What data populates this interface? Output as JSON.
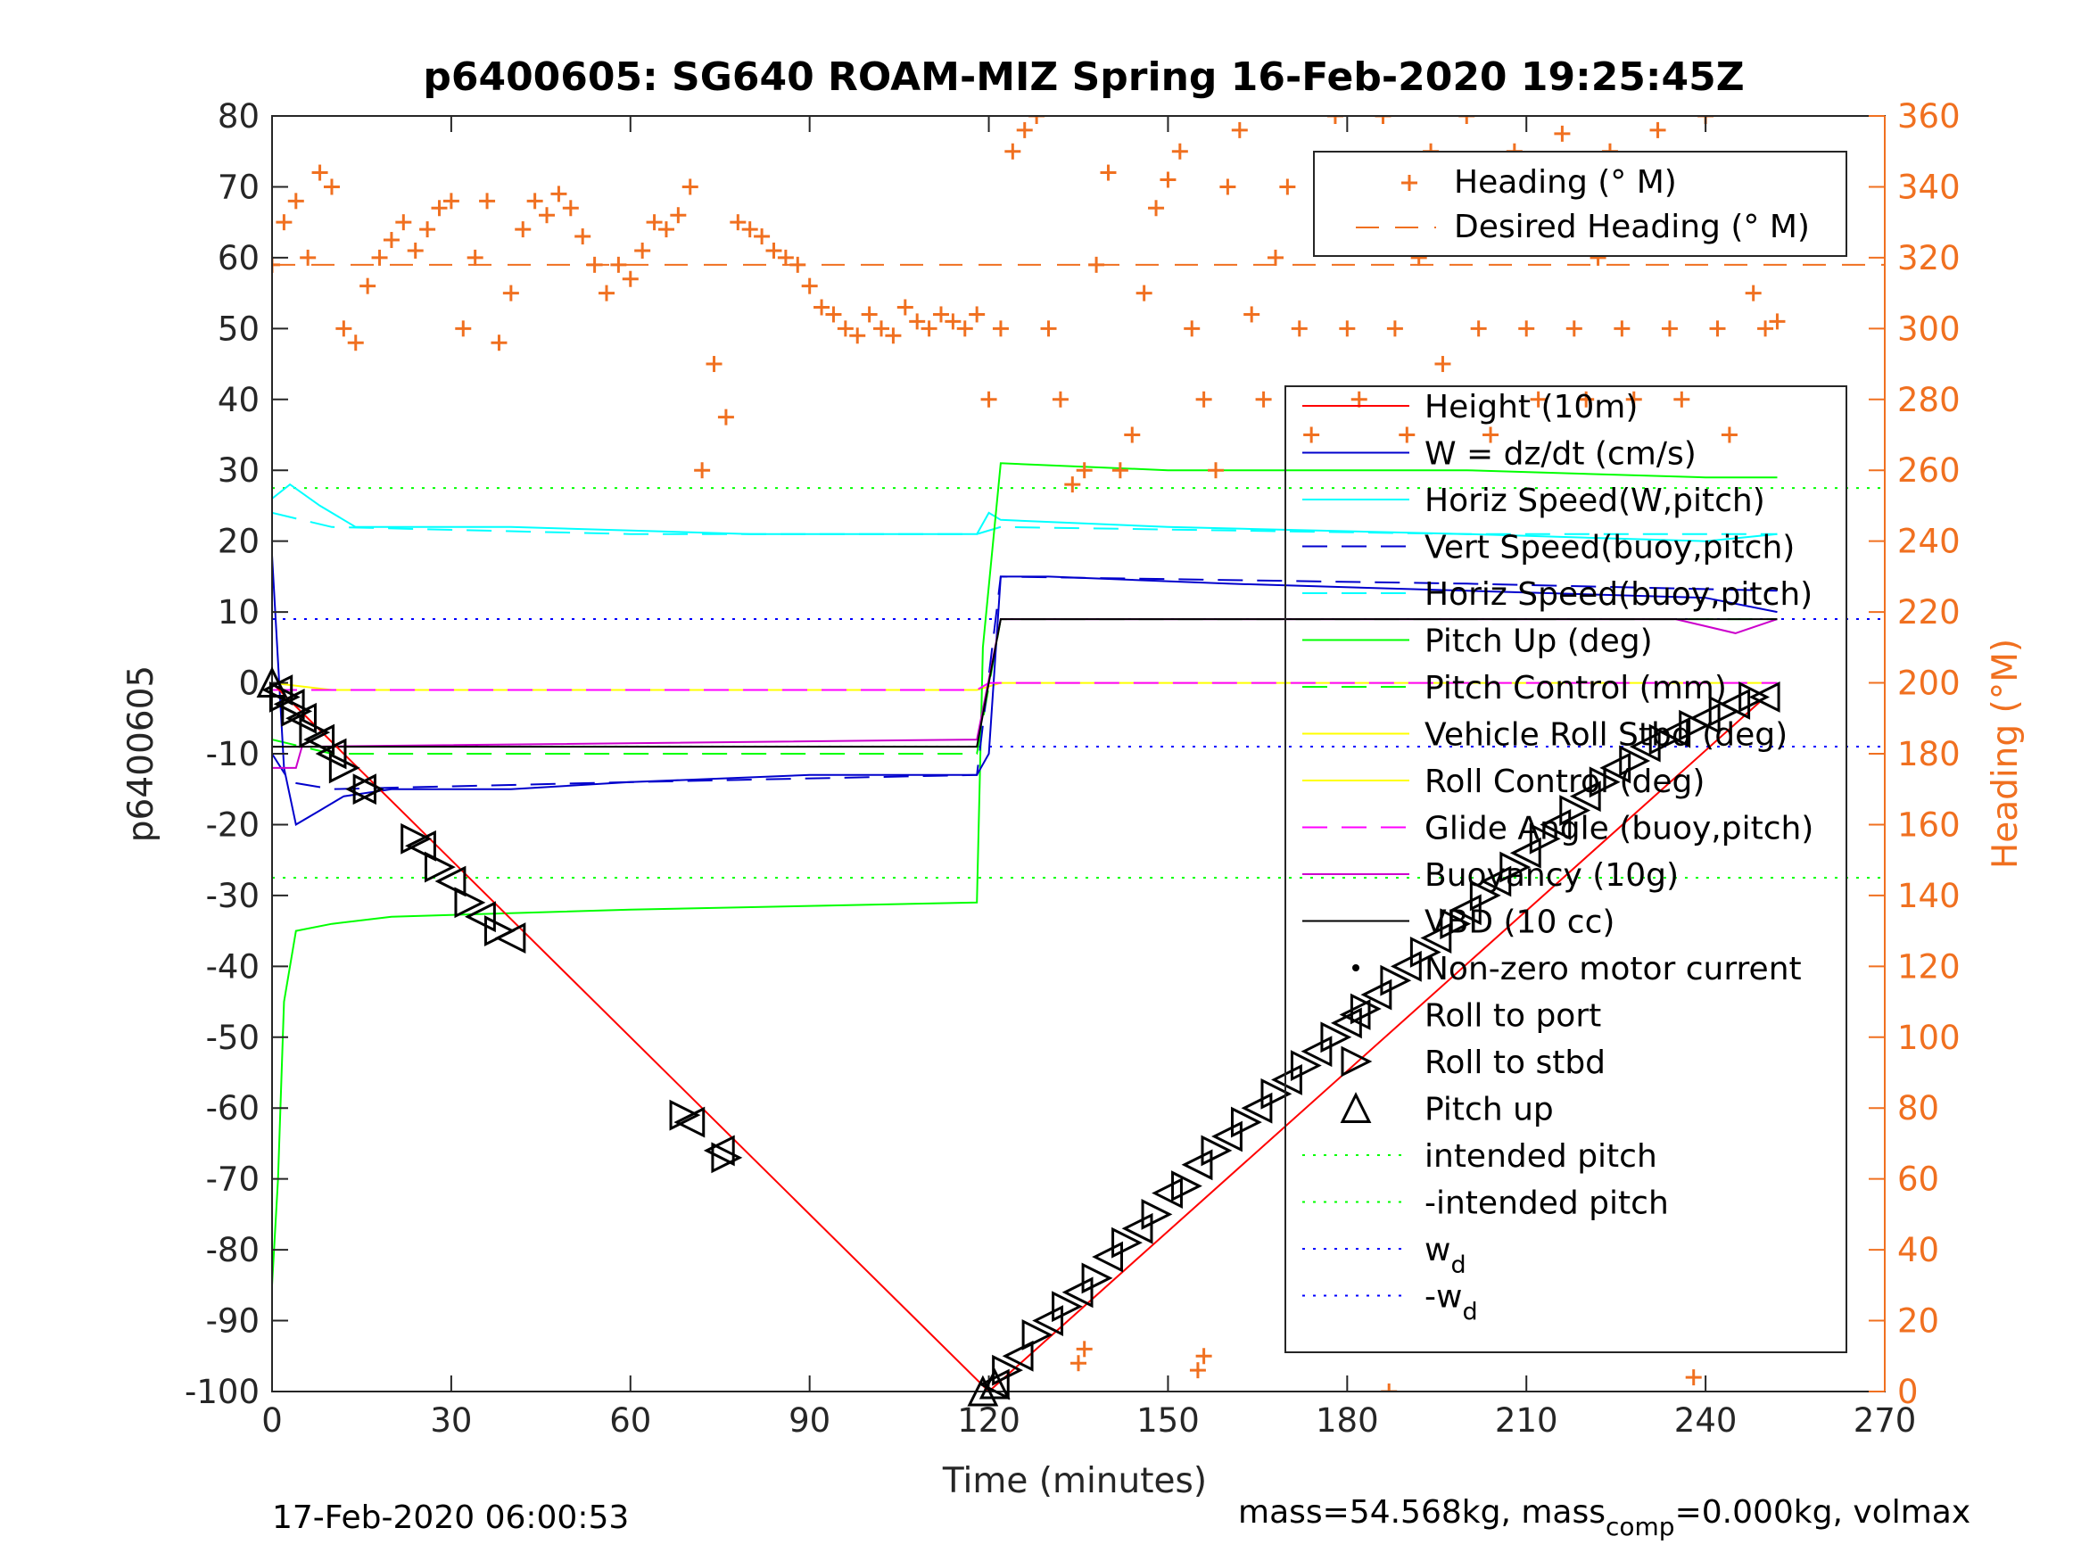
{
  "chart_data": {
    "type": "line",
    "title": "p6400605: SG640 ROAM-MIZ Spring 16-Feb-2020 19:25:45Z",
    "xlabel": "Time (minutes)",
    "ylabel": "p6400605",
    "ylabel_right": "Heading (°M)",
    "xlim": [
      0,
      270
    ],
    "ylim": [
      -100,
      80
    ],
    "ylim_right": [
      0,
      360
    ],
    "x_ticks": [
      0,
      30,
      60,
      90,
      120,
      150,
      180,
      210,
      240,
      270
    ],
    "y_ticks": [
      80,
      70,
      60,
      50,
      40,
      30,
      20,
      10,
      0,
      -10,
      -20,
      -30,
      -40,
      -50,
      -60,
      -70,
      -80,
      -90,
      -100
    ],
    "y_ticks_right": [
      360,
      340,
      320,
      300,
      280,
      260,
      240,
      220,
      200,
      180,
      160,
      140,
      120,
      100,
      80,
      60,
      40,
      20,
      0
    ],
    "grid": false,
    "legend_heading": {
      "placement": "top-right",
      "entries": [
        "Heading (° M)",
        "Desired Heading (° M)"
      ]
    },
    "legend_main": {
      "placement": "right",
      "entries": [
        {
          "label": "Height (10m)"
        },
        {
          "label": "W = dz/dt (cm/s)"
        },
        {
          "label": "Horiz Speed(W,pitch)"
        },
        {
          "label": "Vert Speed(buoy,pitch)"
        },
        {
          "label": "Horiz Speed(buoy,pitch)"
        },
        {
          "label": "Pitch Up (deg)"
        },
        {
          "label": "Pitch Control (mm)"
        },
        {
          "label": "Vehicle Roll Stbd (deg)"
        },
        {
          "label": "Roll Control (deg)"
        },
        {
          "label": "Glide Angle (buoy,pitch)"
        },
        {
          "label": "Buoyancy (10g)"
        },
        {
          "label": "VBD (10 cc)"
        },
        {
          "label": "Non-zero motor current"
        },
        {
          "label": "Roll to port"
        },
        {
          "label": "Roll to stbd"
        },
        {
          "label": "Pitch up"
        },
        {
          "label": "intended pitch"
        },
        {
          "label": "-intended pitch"
        },
        {
          "label_main": "w",
          "label_sub": "d"
        },
        {
          "label_main": "-w",
          "label_sub": "d"
        }
      ]
    },
    "colors": {
      "height": "#ff0000",
      "w": "#0000cc",
      "horiz_speed": "#00ffff",
      "pitch": "#00ff00",
      "roll": "#ffff00",
      "glide": "#ff00ff",
      "buoyancy": "#cc00cc",
      "vbd": "#000000",
      "heading": "#f07020",
      "intended_pitch": "#00ff00",
      "wd": "#0000ff"
    },
    "series": {
      "height": [
        [
          0,
          0
        ],
        [
          120,
          -100
        ],
        [
          250,
          -2
        ]
      ],
      "w_dzdt": [
        [
          0,
          18
        ],
        [
          2,
          -12
        ],
        [
          4,
          -20
        ],
        [
          8,
          -18
        ],
        [
          12,
          -16
        ],
        [
          20,
          -15
        ],
        [
          40,
          -15
        ],
        [
          60,
          -14
        ],
        [
          90,
          -13
        ],
        [
          118,
          -13
        ],
        [
          120,
          -10
        ],
        [
          122,
          15
        ],
        [
          130,
          15
        ],
        [
          160,
          14
        ],
        [
          200,
          13
        ],
        [
          240,
          12
        ],
        [
          252,
          10
        ]
      ],
      "horiz_speed_w": [
        [
          0,
          26
        ],
        [
          3,
          28
        ],
        [
          8,
          25
        ],
        [
          14,
          22
        ],
        [
          40,
          22
        ],
        [
          80,
          21
        ],
        [
          118,
          21
        ],
        [
          120,
          24
        ],
        [
          122,
          23
        ],
        [
          150,
          22
        ],
        [
          200,
          21
        ],
        [
          240,
          20
        ],
        [
          252,
          21
        ]
      ],
      "vert_speed_buoy": [
        [
          0,
          -10
        ],
        [
          3,
          -14
        ],
        [
          10,
          -15
        ],
        [
          60,
          -14
        ],
        [
          118,
          -13
        ],
        [
          122,
          15
        ],
        [
          200,
          14
        ],
        [
          252,
          13
        ]
      ],
      "horiz_speed_buoy": [
        [
          0,
          24
        ],
        [
          10,
          22
        ],
        [
          60,
          21
        ],
        [
          118,
          21
        ],
        [
          122,
          22
        ],
        [
          200,
          21
        ],
        [
          252,
          21
        ]
      ],
      "pitch_up": [
        [
          0,
          -85
        ],
        [
          1,
          -70
        ],
        [
          2,
          -45
        ],
        [
          4,
          -35
        ],
        [
          10,
          -34
        ],
        [
          20,
          -33
        ],
        [
          60,
          -32
        ],
        [
          118,
          -31
        ],
        [
          119,
          5
        ],
        [
          122,
          31
        ],
        [
          150,
          30
        ],
        [
          200,
          30
        ],
        [
          240,
          29
        ],
        [
          252,
          29
        ]
      ],
      "pitch_control": [
        [
          0,
          -8
        ],
        [
          10,
          -10
        ],
        [
          118,
          -10
        ],
        [
          122,
          9
        ],
        [
          252,
          9
        ]
      ],
      "roll_stbd": [
        [
          0,
          0
        ],
        [
          10,
          -1
        ],
        [
          60,
          -1
        ],
        [
          118,
          -1
        ],
        [
          122,
          0
        ],
        [
          252,
          0
        ]
      ],
      "glide_angle": [
        [
          0,
          -1
        ],
        [
          118,
          -1
        ],
        [
          120,
          0
        ],
        [
          252,
          0
        ]
      ],
      "buoyancy": [
        [
          0,
          -12
        ],
        [
          4,
          -12
        ],
        [
          5,
          -9
        ],
        [
          118,
          -8
        ],
        [
          122,
          9
        ],
        [
          235,
          9
        ],
        [
          245,
          7
        ],
        [
          252,
          9
        ]
      ],
      "vbd": [
        [
          0,
          -9
        ],
        [
          118,
          -9
        ],
        [
          122,
          9
        ],
        [
          252,
          9
        ]
      ],
      "intended_pitch": 27.5,
      "neg_intended_pitch": -27.5,
      "wd": 9,
      "neg_wd": -9,
      "desired_heading": 318,
      "roll_to_port": [
        [
          1,
          -1
        ],
        [
          3,
          -3
        ],
        [
          5,
          -5
        ],
        [
          8,
          -8
        ],
        [
          10,
          -10
        ],
        [
          15,
          -15
        ],
        [
          25,
          -23
        ],
        [
          30,
          -28
        ],
        [
          35,
          -33
        ],
        [
          40,
          -36
        ],
        [
          70,
          -62
        ],
        [
          75,
          -66
        ],
        [
          121,
          -99
        ],
        [
          125,
          -95
        ],
        [
          130,
          -90
        ],
        [
          135,
          -86
        ],
        [
          140,
          -81
        ],
        [
          145,
          -77
        ],
        [
          150,
          -72
        ],
        [
          155,
          -68
        ],
        [
          160,
          -64
        ],
        [
          165,
          -60
        ],
        [
          170,
          -56
        ],
        [
          175,
          -52
        ],
        [
          180,
          -48
        ],
        [
          185,
          -44
        ],
        [
          190,
          -40
        ],
        [
          195,
          -36
        ],
        [
          200,
          -32
        ],
        [
          205,
          -28
        ],
        [
          210,
          -24
        ],
        [
          215,
          -20
        ],
        [
          220,
          -16
        ],
        [
          225,
          -12
        ],
        [
          230,
          -9
        ],
        [
          235,
          -7
        ],
        [
          240,
          -5
        ],
        [
          245,
          -3
        ],
        [
          250,
          -2
        ]
      ],
      "roll_to_stbd": [
        [
          2,
          -2
        ],
        [
          4,
          -4
        ],
        [
          7,
          -7
        ],
        [
          12,
          -12
        ],
        [
          16,
          -15
        ],
        [
          24,
          -22
        ],
        [
          28,
          -26
        ],
        [
          33,
          -31
        ],
        [
          38,
          -35
        ],
        [
          69,
          -61
        ],
        [
          76,
          -67
        ],
        [
          123,
          -97
        ],
        [
          128,
          -92
        ],
        [
          133,
          -88
        ],
        [
          138,
          -84
        ],
        [
          143,
          -79
        ],
        [
          148,
          -75
        ],
        [
          153,
          -71
        ],
        [
          158,
          -66
        ],
        [
          163,
          -62
        ],
        [
          168,
          -58
        ],
        [
          173,
          -54
        ],
        [
          178,
          -50
        ],
        [
          183,
          -46
        ],
        [
          188,
          -42
        ],
        [
          193,
          -38
        ],
        [
          198,
          -34
        ],
        [
          203,
          -30
        ],
        [
          208,
          -26
        ],
        [
          213,
          -22
        ],
        [
          218,
          -18
        ],
        [
          223,
          -14
        ],
        [
          228,
          -11
        ],
        [
          233,
          -8
        ],
        [
          238,
          -6
        ],
        [
          243,
          -4
        ],
        [
          248,
          -2
        ]
      ],
      "pitch_up_markers": [
        [
          0,
          0
        ],
        [
          119,
          -100
        ],
        [
          121,
          -99
        ]
      ],
      "heading": [
        [
          0,
          318
        ],
        [
          2,
          330
        ],
        [
          4,
          336
        ],
        [
          6,
          320
        ],
        [
          8,
          344
        ],
        [
          10,
          340
        ],
        [
          12,
          300
        ],
        [
          14,
          296
        ],
        [
          16,
          312
        ],
        [
          18,
          320
        ],
        [
          20,
          325
        ],
        [
          22,
          330
        ],
        [
          24,
          322
        ],
        [
          26,
          328
        ],
        [
          28,
          334
        ],
        [
          30,
          336
        ],
        [
          32,
          300
        ],
        [
          34,
          320
        ],
        [
          36,
          336
        ],
        [
          38,
          296
        ],
        [
          40,
          310
        ],
        [
          42,
          328
        ],
        [
          44,
          336
        ],
        [
          46,
          332
        ],
        [
          48,
          338
        ],
        [
          50,
          334
        ],
        [
          52,
          326
        ],
        [
          54,
          318
        ],
        [
          56,
          310
        ],
        [
          58,
          318
        ],
        [
          60,
          314
        ],
        [
          62,
          322
        ],
        [
          64,
          330
        ],
        [
          66,
          328
        ],
        [
          68,
          332
        ],
        [
          70,
          340
        ],
        [
          72,
          260
        ],
        [
          74,
          290
        ],
        [
          76,
          275
        ],
        [
          78,
          330
        ],
        [
          80,
          328
        ],
        [
          82,
          326
        ],
        [
          84,
          322
        ],
        [
          86,
          320
        ],
        [
          88,
          318
        ],
        [
          90,
          312
        ],
        [
          92,
          306
        ],
        [
          94,
          304
        ],
        [
          96,
          300
        ],
        [
          98,
          298
        ],
        [
          100,
          304
        ],
        [
          102,
          300
        ],
        [
          104,
          298
        ],
        [
          106,
          306
        ],
        [
          108,
          302
        ],
        [
          110,
          300
        ],
        [
          112,
          304
        ],
        [
          114,
          302
        ],
        [
          116,
          300
        ],
        [
          118,
          304
        ],
        [
          120,
          280
        ],
        [
          122,
          300
        ],
        [
          124,
          350
        ],
        [
          126,
          356
        ],
        [
          128,
          360
        ],
        [
          130,
          300
        ],
        [
          132,
          280
        ],
        [
          134,
          256
        ],
        [
          136,
          260
        ],
        [
          138,
          318
        ],
        [
          140,
          344
        ],
        [
          142,
          260
        ],
        [
          144,
          270
        ],
        [
          146,
          310
        ],
        [
          148,
          334
        ],
        [
          150,
          342
        ],
        [
          152,
          350
        ],
        [
          154,
          300
        ],
        [
          156,
          280
        ],
        [
          158,
          260
        ],
        [
          160,
          340
        ],
        [
          162,
          356
        ],
        [
          164,
          304
        ],
        [
          166,
          280
        ],
        [
          168,
          320
        ],
        [
          170,
          340
        ],
        [
          172,
          300
        ],
        [
          174,
          270
        ],
        [
          176,
          330
        ],
        [
          178,
          360
        ],
        [
          180,
          300
        ],
        [
          182,
          280
        ],
        [
          184,
          330
        ],
        [
          186,
          360
        ],
        [
          188,
          300
        ],
        [
          190,
          270
        ],
        [
          192,
          320
        ],
        [
          194,
          350
        ],
        [
          196,
          290
        ],
        [
          198,
          330
        ],
        [
          200,
          360
        ],
        [
          202,
          300
        ],
        [
          204,
          270
        ],
        [
          206,
          330
        ],
        [
          208,
          350
        ],
        [
          210,
          300
        ],
        [
          212,
          280
        ],
        [
          214,
          330
        ],
        [
          216,
          355
        ],
        [
          218,
          300
        ],
        [
          220,
          280
        ],
        [
          222,
          320
        ],
        [
          224,
          350
        ],
        [
          226,
          300
        ],
        [
          228,
          280
        ],
        [
          230,
          340
        ],
        [
          232,
          356
        ],
        [
          234,
          300
        ],
        [
          236,
          280
        ],
        [
          238,
          330
        ],
        [
          240,
          360
        ],
        [
          242,
          300
        ],
        [
          244,
          270
        ],
        [
          246,
          330
        ],
        [
          248,
          310
        ],
        [
          250,
          300
        ],
        [
          252,
          302
        ]
      ],
      "heading_low": [
        [
          135,
          8
        ],
        [
          136,
          12
        ],
        [
          155,
          6
        ],
        [
          156,
          10
        ],
        [
          187,
          0
        ],
        [
          238,
          4
        ]
      ],
      "non_zero_motor_current": []
    }
  },
  "footer": {
    "left": "17-Feb-2020 06:00:53",
    "right_pre": "mass=54.568kg, mass",
    "right_sub": "comp",
    "right_post": "=0.000kg, volmax"
  }
}
